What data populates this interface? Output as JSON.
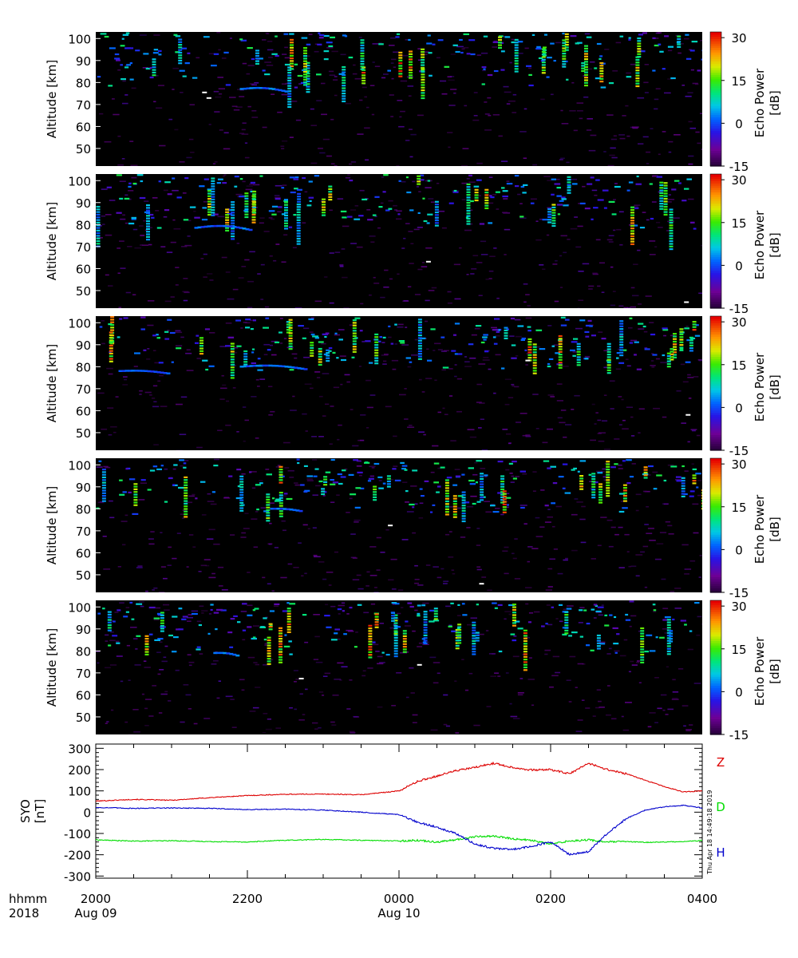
{
  "radar_panels": {
    "ylabel": "Altitude [km]",
    "yticks": [
      50,
      60,
      70,
      80,
      90,
      100
    ],
    "yrange": [
      42,
      103
    ],
    "colorbar": {
      "label_line1": "Echo Power",
      "label_line2": "[dB]",
      "ticks": [
        "30",
        "15",
        "0",
        "-15"
      ],
      "range": [
        -15,
        32
      ]
    },
    "panels": [
      {
        "id": 1,
        "seed": 11,
        "layers": [
          {
            "alt": 77.5,
            "t0": 1.9,
            "t1": 2.5,
            "curve": 1.0
          }
        ]
      },
      {
        "id": 2,
        "seed": 23,
        "layers": [
          {
            "alt": 79,
            "t0": 1.3,
            "t1": 2.05,
            "curve": 1.4
          }
        ]
      },
      {
        "id": 3,
        "seed": 37,
        "layers": [
          {
            "alt": 80.5,
            "t0": 1.9,
            "t1": 2.75,
            "curve": 1.0
          },
          {
            "alt": 78.5,
            "t0": 0.3,
            "t1": 0.95,
            "curve": 0.6
          }
        ]
      },
      {
        "id": 4,
        "seed": 51,
        "layers": [
          {
            "alt": 80.5,
            "t0": 2.3,
            "t1": 2.7,
            "curve": 0.4
          }
        ]
      },
      {
        "id": 5,
        "seed": 67,
        "layers": [
          {
            "alt": 79.5,
            "t0": 1.55,
            "t1": 1.85,
            "curve": 0.5
          }
        ]
      }
    ]
  },
  "chart_data": {
    "type": "line",
    "ylabel": "SYO\n[nT]",
    "ylim": [
      -310,
      320
    ],
    "yticks": [
      300,
      200,
      100,
      0,
      -100,
      -200,
      -300
    ],
    "x_range_hours_from_2000": [
      0,
      8
    ],
    "series": [
      {
        "name": "Z",
        "color": "#dd0000",
        "x": [
          0,
          0.5,
          1.0,
          1.5,
          2.0,
          2.5,
          3.0,
          3.5,
          4.0,
          4.25,
          4.5,
          4.75,
          5.0,
          5.25,
          5.5,
          5.75,
          6.0,
          6.25,
          6.5,
          6.75,
          7.0,
          7.25,
          7.5,
          7.75,
          8.0
        ],
        "y": [
          52,
          60,
          56,
          68,
          78,
          84,
          85,
          82,
          100,
          145,
          170,
          195,
          210,
          230,
          210,
          198,
          200,
          180,
          230,
          200,
          180,
          150,
          120,
          95,
          100
        ]
      },
      {
        "name": "D",
        "color": "#00dd00",
        "x": [
          0,
          0.5,
          1.0,
          1.5,
          2.0,
          2.5,
          3.0,
          3.5,
          4.0,
          4.25,
          4.5,
          4.75,
          5.0,
          5.25,
          5.5,
          5.75,
          6.0,
          6.25,
          6.5,
          6.75,
          7.0,
          7.25,
          7.5,
          7.75,
          8.0
        ],
        "y": [
          -130,
          -136,
          -134,
          -138,
          -140,
          -132,
          -128,
          -132,
          -135,
          -132,
          -140,
          -130,
          -115,
          -112,
          -125,
          -132,
          -150,
          -135,
          -130,
          -140,
          -138,
          -142,
          -140,
          -138,
          -133
        ]
      },
      {
        "name": "H",
        "color": "#0000cc",
        "x": [
          0,
          0.5,
          1.0,
          1.5,
          2.0,
          2.5,
          3.0,
          3.5,
          4.0,
          4.25,
          4.5,
          4.75,
          5.0,
          5.25,
          5.5,
          5.75,
          6.0,
          6.25,
          6.5,
          6.75,
          7.0,
          7.25,
          7.5,
          7.75,
          8.0
        ],
        "y": [
          22,
          18,
          20,
          18,
          12,
          14,
          10,
          0,
          -12,
          -48,
          -70,
          -100,
          -150,
          -170,
          -175,
          -160,
          -140,
          -200,
          -185,
          -100,
          -30,
          10,
          25,
          32,
          20
        ]
      }
    ]
  },
  "x_axis": {
    "row1_title": "hhmm",
    "row2_title": "2018",
    "ticks": [
      {
        "label": "2000",
        "hour": 0
      },
      {
        "label": "2200",
        "hour": 2
      },
      {
        "label": "0000",
        "hour": 4
      },
      {
        "label": "0200",
        "hour": 6
      },
      {
        "label": "0400",
        "hour": 8
      }
    ],
    "dates": [
      {
        "label": "Aug 09",
        "hour": 0
      },
      {
        "label": "Aug 10",
        "hour": 4
      }
    ]
  },
  "timestamp": "Thu Apr 18 14:49:18 2019"
}
